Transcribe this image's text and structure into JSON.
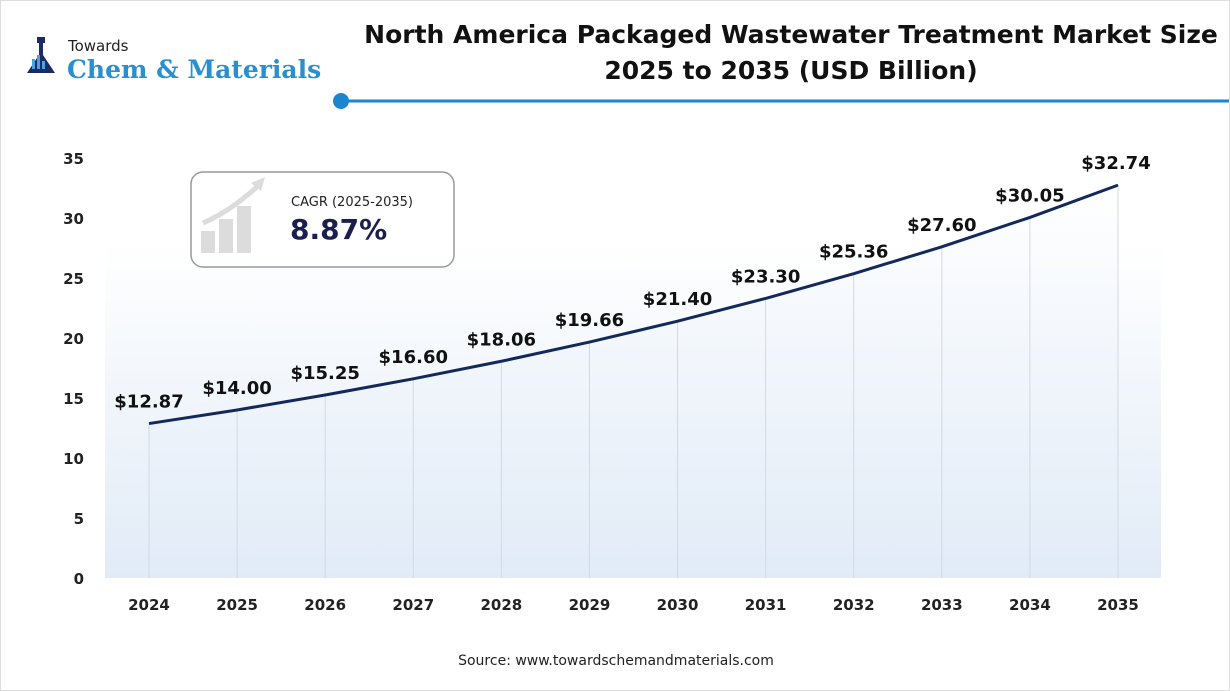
{
  "logo": {
    "line1": "Towards",
    "line2": "Chem & Materials"
  },
  "colors": {
    "line": "#13295a",
    "accent": "#1a86d0",
    "area_fill_top": "#ffffff",
    "area_fill_bottom": "#e3edf8"
  },
  "cagr": {
    "label": "CAGR (2025-2035)",
    "value": "8.87%"
  },
  "source": "Source: www.towardschemandmaterials.com",
  "chart_data": {
    "type": "area",
    "title": "North America Packaged Wastewater Treatment Market Size",
    "subtitle": "2025 to 2035 (USD Billion)",
    "categories": [
      "2024",
      "2025",
      "2026",
      "2027",
      "2028",
      "2029",
      "2030",
      "2031",
      "2032",
      "2033",
      "2034",
      "2035"
    ],
    "values": [
      12.87,
      14.0,
      15.25,
      16.6,
      18.06,
      19.66,
      21.4,
      23.3,
      25.36,
      27.6,
      30.05,
      32.74
    ],
    "labels": [
      "$12.87",
      "$14.00",
      "$15.25",
      "$16.60",
      "$18.06",
      "$19.66",
      "$21.40",
      "$23.30",
      "$25.36",
      "$27.60",
      "$30.05",
      "$32.74"
    ],
    "yticks": [
      "0",
      "5",
      "10",
      "15",
      "20",
      "25",
      "30",
      "35"
    ],
    "ylim": [
      0,
      35
    ],
    "grid": "vertical lines at each category",
    "legend": "none"
  }
}
